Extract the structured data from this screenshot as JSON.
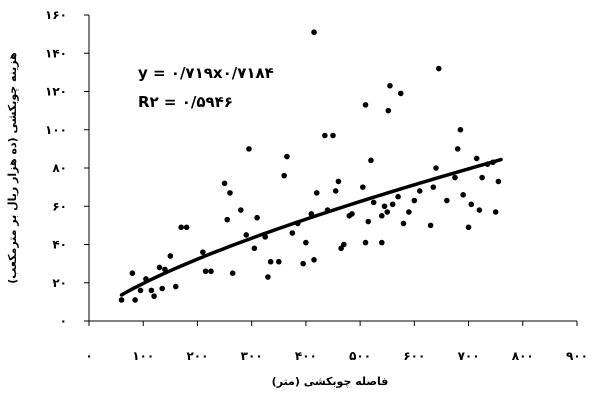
{
  "chart_data": {
    "type": "scatter",
    "title": "",
    "xlabel": "فاصله چوبکشی (متر)",
    "ylabel": "هزینه چوبکشی (ده هزار ریال بر مترمکعب)",
    "xlim": [
      0,
      900
    ],
    "ylim": [
      0,
      160
    ],
    "x_ticks": [
      0,
      100,
      200,
      300,
      400,
      500,
      600,
      700,
      800,
      900
    ],
    "x_tick_labels": [
      "۰",
      "۱۰۰",
      "۲۰۰",
      "۳۰۰",
      "۴۰۰",
      "۵۰۰",
      "۶۰۰",
      "۷۰۰",
      "۸۰۰",
      "۹۰۰"
    ],
    "y_ticks": [
      0,
      20,
      40,
      60,
      80,
      100,
      120,
      140,
      160
    ],
    "y_tick_labels": [
      "۰",
      "۲۰",
      "۴۰",
      "۶۰",
      "۸۰",
      "۱۰۰",
      "۱۲۰",
      "۱۴۰",
      "۱۶۰"
    ],
    "grid": false,
    "legend": "none",
    "trendline": {
      "type": "power",
      "a": 0.719,
      "b": 0.7184,
      "x_range": [
        60,
        760
      ],
      "equation_text": "y = ۰/۷۱۹x۰/۷۱۸۴",
      "r2_text": "R۲ = ۰/۵۹۴۶"
    },
    "points": [
      [
        60,
        11
      ],
      [
        80,
        25
      ],
      [
        85,
        11
      ],
      [
        95,
        16
      ],
      [
        105,
        22
      ],
      [
        115,
        16
      ],
      [
        120,
        13
      ],
      [
        130,
        28
      ],
      [
        135,
        17
      ],
      [
        140,
        27
      ],
      [
        150,
        34
      ],
      [
        160,
        18
      ],
      [
        170,
        49
      ],
      [
        180,
        49
      ],
      [
        210,
        36
      ],
      [
        215,
        26
      ],
      [
        225,
        26
      ],
      [
        250,
        72
      ],
      [
        255,
        53
      ],
      [
        260,
        67
      ],
      [
        265,
        25
      ],
      [
        280,
        58
      ],
      [
        290,
        45
      ],
      [
        295,
        90
      ],
      [
        305,
        38
      ],
      [
        310,
        54
      ],
      [
        325,
        44
      ],
      [
        330,
        23
      ],
      [
        335,
        31
      ],
      [
        350,
        31
      ],
      [
        360,
        76
      ],
      [
        365,
        86
      ],
      [
        375,
        46
      ],
      [
        385,
        51
      ],
      [
        395,
        30
      ],
      [
        400,
        41
      ],
      [
        410,
        56
      ],
      [
        415,
        32
      ],
      [
        415,
        151
      ],
      [
        420,
        67
      ],
      [
        435,
        97
      ],
      [
        440,
        58
      ],
      [
        450,
        97
      ],
      [
        455,
        68
      ],
      [
        460,
        73
      ],
      [
        465,
        38
      ],
      [
        470,
        40
      ],
      [
        480,
        55
      ],
      [
        485,
        56
      ],
      [
        505,
        70
      ],
      [
        510,
        41
      ],
      [
        510,
        113
      ],
      [
        515,
        52
      ],
      [
        520,
        84
      ],
      [
        525,
        62
      ],
      [
        540,
        55
      ],
      [
        540,
        41
      ],
      [
        545,
        60
      ],
      [
        550,
        57
      ],
      [
        552,
        110
      ],
      [
        555,
        123
      ],
      [
        560,
        61
      ],
      [
        570,
        65
      ],
      [
        575,
        119
      ],
      [
        580,
        51
      ],
      [
        590,
        57
      ],
      [
        600,
        63
      ],
      [
        610,
        68
      ],
      [
        630,
        50
      ],
      [
        635,
        70
      ],
      [
        640,
        80
      ],
      [
        645,
        132
      ],
      [
        660,
        63
      ],
      [
        675,
        75
      ],
      [
        680,
        90
      ],
      [
        685,
        100
      ],
      [
        690,
        66
      ],
      [
        700,
        49
      ],
      [
        705,
        61
      ],
      [
        715,
        85
      ],
      [
        720,
        58
      ],
      [
        725,
        75
      ],
      [
        735,
        82
      ],
      [
        745,
        83
      ],
      [
        750,
        57
      ],
      [
        755,
        73
      ]
    ]
  }
}
